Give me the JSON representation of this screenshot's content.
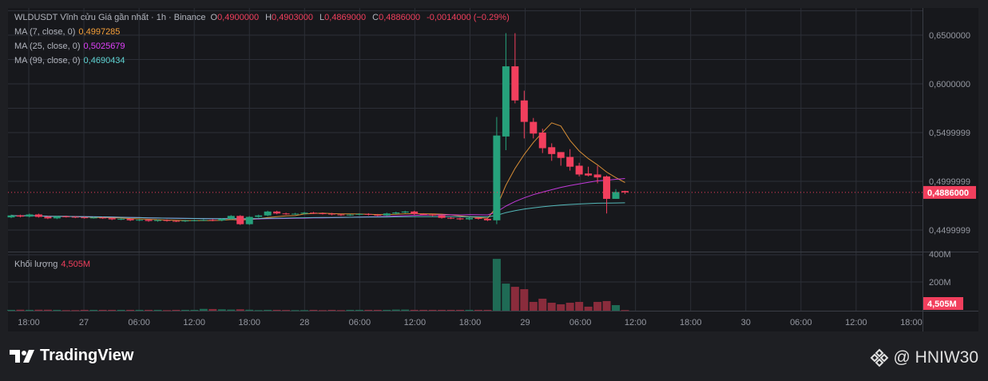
{
  "header": {
    "symbol": "WLDUSDT Vĩnh cửu Giá gần nhất · 1h · Binance",
    "o_label": "O",
    "o": "0,4900000",
    "h_label": "H",
    "h": "0,4903000",
    "l_label": "L",
    "l": "0,4869000",
    "c_label": "C",
    "c": "0,4886000",
    "change": "-0,0014000 (−0.29%)"
  },
  "indicators": [
    {
      "label": "MA (7, close, 0)",
      "value": "0,4997285",
      "color": "#f7a13a"
    },
    {
      "label": "MA (25, close, 0)",
      "value": "0,5025679",
      "color": "#e040fb"
    },
    {
      "label": "MA (99, close, 0)",
      "value": "0,4690434",
      "color": "#5fd3d3"
    }
  ],
  "volume_pane": {
    "label": "Khối lượng",
    "value": "4,505M",
    "axis_ticks": [
      "400M",
      "200M"
    ],
    "current_badge": "4,505M"
  },
  "colors": {
    "up": "#26a17b",
    "down": "#f23f5d",
    "vol_up": "#1f6b55",
    "vol_down": "#8a2c3c",
    "grid": "#2c2f37",
    "bg": "#17181c"
  },
  "footer": {
    "brand": "TradingView",
    "watermark": "@ HNIW30"
  },
  "chart_data": {
    "type": "candlestick",
    "interval": "1h",
    "price_axis_ticks": [
      "0,6500000",
      "0,6000000",
      "0,5499999",
      "0,4999999",
      "0,4499999"
    ],
    "price_tick_values": [
      0.65,
      0.6,
      0.55,
      0.5,
      0.45
    ],
    "current_price_label": "0,4886000",
    "current_price": 0.4886,
    "time_axis_labels": [
      "18:00",
      "27",
      "06:00",
      "12:00",
      "18:00",
      "28",
      "06:00",
      "12:00",
      "18:00",
      "29",
      "06:00",
      "12:00",
      "18:00",
      "30",
      "06:00",
      "12:00",
      "18:00"
    ],
    "first_candle": "26 16:00",
    "closes_pre": [
      0.465,
      0.4638,
      0.466,
      0.4635,
      0.462,
      0.464,
      0.4636,
      0.463,
      0.4625,
      0.4628,
      0.4622,
      0.461,
      0.4614,
      0.46,
      0.4605,
      0.4593,
      0.4602,
      0.4594,
      0.459,
      0.4597,
      0.46,
      0.4604,
      0.4598,
      0.4615,
      0.4645,
      0.456,
      0.4635,
      0.465,
      0.469,
      0.467,
      0.4665,
      0.4668,
      0.4678,
      0.4672,
      0.4668,
      0.466,
      0.4653,
      0.4658,
      0.4665,
      0.4657,
      0.465,
      0.467,
      0.468,
      0.469,
      0.4665,
      0.466,
      0.465,
      0.4625,
      0.462,
      0.461,
      0.4625,
      0.4615,
      0.46
    ],
    "ohlc_spike": [
      [
        0.46,
        0.566,
        0.456,
        0.547
      ],
      [
        0.546,
        0.652,
        0.532,
        0.618
      ],
      [
        0.618,
        0.652,
        0.58,
        0.583
      ],
      [
        0.583,
        0.593,
        0.544,
        0.561
      ],
      [
        0.561,
        0.565,
        0.544,
        0.549
      ],
      [
        0.55,
        0.554,
        0.529,
        0.534
      ],
      [
        0.535,
        0.539,
        0.521,
        0.528
      ],
      [
        0.53,
        0.53,
        0.516,
        0.524
      ],
      [
        0.525,
        0.533,
        0.511,
        0.515
      ],
      [
        0.516,
        0.519,
        0.505,
        0.507
      ],
      [
        0.508,
        0.515,
        0.505,
        0.506
      ],
      [
        0.507,
        0.516,
        0.498,
        0.504
      ],
      [
        0.505,
        0.506,
        0.467,
        0.482
      ],
      [
        0.482,
        0.492,
        0.482,
        0.489
      ],
      [
        0.49,
        0.4903,
        0.4869,
        0.4886
      ]
    ],
    "volumes_M": [
      6,
      7,
      6,
      7,
      7,
      6,
      4,
      4,
      6,
      6,
      6,
      6,
      6,
      6,
      6,
      6,
      6,
      4,
      6,
      6,
      6,
      13,
      12,
      10,
      8,
      10,
      7,
      4,
      6,
      6,
      5,
      4,
      4,
      6,
      4,
      6,
      4,
      6,
      6,
      6,
      6,
      6,
      8,
      8,
      6,
      6,
      6,
      6,
      6,
      6,
      6,
      6,
      6,
      371,
      194,
      171,
      154,
      63,
      86,
      57,
      46,
      57,
      63,
      29,
      63,
      69,
      40,
      4.5
    ],
    "ma_periods": [
      7,
      25,
      99
    ],
    "price_range": [
      0.43,
      0.67
    ],
    "volume_range_M": [
      0,
      400
    ]
  }
}
